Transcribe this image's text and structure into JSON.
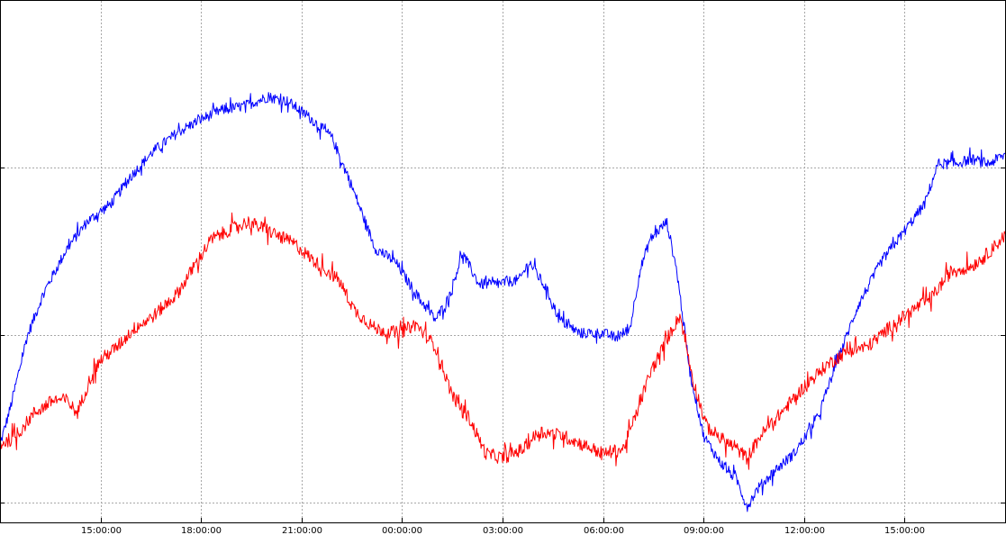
{
  "chart_data": {
    "type": "line",
    "x_ticks": [
      "15:00:00",
      "18:00:00",
      "21:00:00",
      "00:00:00",
      "03:00:00",
      "06:00:00",
      "09:00:00",
      "12:00:00",
      "15:00:00"
    ],
    "x_tick_hours": [
      15,
      18,
      21,
      24,
      27,
      30,
      33,
      36,
      39
    ],
    "xlim": [
      12,
      42
    ],
    "ylim": [
      0,
      1
    ],
    "grid": true,
    "y_tick_labels_visible": false,
    "series": [
      {
        "color": "#0000ff",
        "noise": 0.012,
        "points": [
          [
            12.0,
            0.14
          ],
          [
            12.3,
            0.22
          ],
          [
            12.8,
            0.38
          ],
          [
            13.3,
            0.48
          ],
          [
            14.0,
            0.58
          ],
          [
            14.6,
            0.64
          ],
          [
            15.3,
            0.68
          ],
          [
            16.0,
            0.75
          ],
          [
            16.6,
            0.8
          ],
          [
            17.3,
            0.84
          ],
          [
            18.0,
            0.87
          ],
          [
            18.6,
            0.89
          ],
          [
            19.3,
            0.9
          ],
          [
            20.0,
            0.92
          ],
          [
            20.6,
            0.91
          ],
          [
            21.3,
            0.87
          ],
          [
            21.9,
            0.83
          ],
          [
            22.5,
            0.72
          ],
          [
            23.2,
            0.58
          ],
          [
            23.8,
            0.55
          ],
          [
            24.4,
            0.48
          ],
          [
            25.0,
            0.42
          ],
          [
            25.4,
            0.47
          ],
          [
            25.8,
            0.57
          ],
          [
            26.3,
            0.5
          ],
          [
            26.8,
            0.5
          ],
          [
            27.5,
            0.51
          ],
          [
            27.8,
            0.55
          ],
          [
            28.3,
            0.49
          ],
          [
            28.7,
            0.42
          ],
          [
            29.3,
            0.39
          ],
          [
            30.0,
            0.39
          ],
          [
            30.4,
            0.38
          ],
          [
            30.8,
            0.4
          ],
          [
            31.1,
            0.53
          ],
          [
            31.4,
            0.6
          ],
          [
            31.9,
            0.64
          ],
          [
            32.2,
            0.53
          ],
          [
            32.6,
            0.3
          ],
          [
            33.0,
            0.16
          ],
          [
            33.5,
            0.1
          ],
          [
            34.0,
            0.06
          ],
          [
            34.3,
            0.0
          ],
          [
            34.6,
            0.04
          ],
          [
            35.1,
            0.08
          ],
          [
            35.7,
            0.12
          ],
          [
            36.4,
            0.2
          ],
          [
            37.0,
            0.33
          ],
          [
            37.6,
            0.45
          ],
          [
            38.3,
            0.55
          ],
          [
            39.0,
            0.62
          ],
          [
            39.6,
            0.68
          ],
          [
            40.0,
            0.77
          ],
          [
            40.5,
            0.77
          ],
          [
            41.0,
            0.78
          ],
          [
            41.5,
            0.77
          ],
          [
            42.0,
            0.79
          ]
        ]
      },
      {
        "color": "#ff0000",
        "noise": 0.015,
        "points": [
          [
            12.0,
            0.14
          ],
          [
            12.5,
            0.16
          ],
          [
            13.0,
            0.21
          ],
          [
            13.6,
            0.24
          ],
          [
            14.0,
            0.24
          ],
          [
            14.3,
            0.21
          ],
          [
            14.7,
            0.29
          ],
          [
            15.0,
            0.33
          ],
          [
            15.5,
            0.36
          ],
          [
            16.0,
            0.4
          ],
          [
            16.6,
            0.43
          ],
          [
            17.3,
            0.48
          ],
          [
            17.8,
            0.54
          ],
          [
            18.3,
            0.6
          ],
          [
            18.8,
            0.62
          ],
          [
            19.4,
            0.64
          ],
          [
            20.0,
            0.62
          ],
          [
            20.8,
            0.59
          ],
          [
            21.4,
            0.55
          ],
          [
            22.1,
            0.51
          ],
          [
            22.6,
            0.44
          ],
          [
            23.2,
            0.4
          ],
          [
            23.9,
            0.39
          ],
          [
            24.4,
            0.41
          ],
          [
            25.0,
            0.36
          ],
          [
            25.5,
            0.25
          ],
          [
            26.0,
            0.2
          ],
          [
            26.5,
            0.12
          ],
          [
            27.0,
            0.11
          ],
          [
            27.6,
            0.13
          ],
          [
            28.1,
            0.17
          ],
          [
            28.8,
            0.16
          ],
          [
            29.4,
            0.14
          ],
          [
            30.0,
            0.12
          ],
          [
            30.6,
            0.13
          ],
          [
            31.0,
            0.21
          ],
          [
            31.4,
            0.3
          ],
          [
            32.0,
            0.39
          ],
          [
            32.3,
            0.43
          ],
          [
            32.7,
            0.28
          ],
          [
            33.1,
            0.18
          ],
          [
            33.6,
            0.15
          ],
          [
            34.0,
            0.13
          ],
          [
            34.3,
            0.11
          ],
          [
            34.7,
            0.16
          ],
          [
            35.3,
            0.21
          ],
          [
            36.0,
            0.27
          ],
          [
            36.7,
            0.32
          ],
          [
            37.3,
            0.35
          ],
          [
            37.9,
            0.36
          ],
          [
            38.5,
            0.4
          ],
          [
            39.2,
            0.44
          ],
          [
            39.8,
            0.47
          ],
          [
            40.4,
            0.53
          ],
          [
            41.0,
            0.54
          ],
          [
            41.5,
            0.57
          ],
          [
            42.0,
            0.61
          ]
        ]
      }
    ]
  }
}
